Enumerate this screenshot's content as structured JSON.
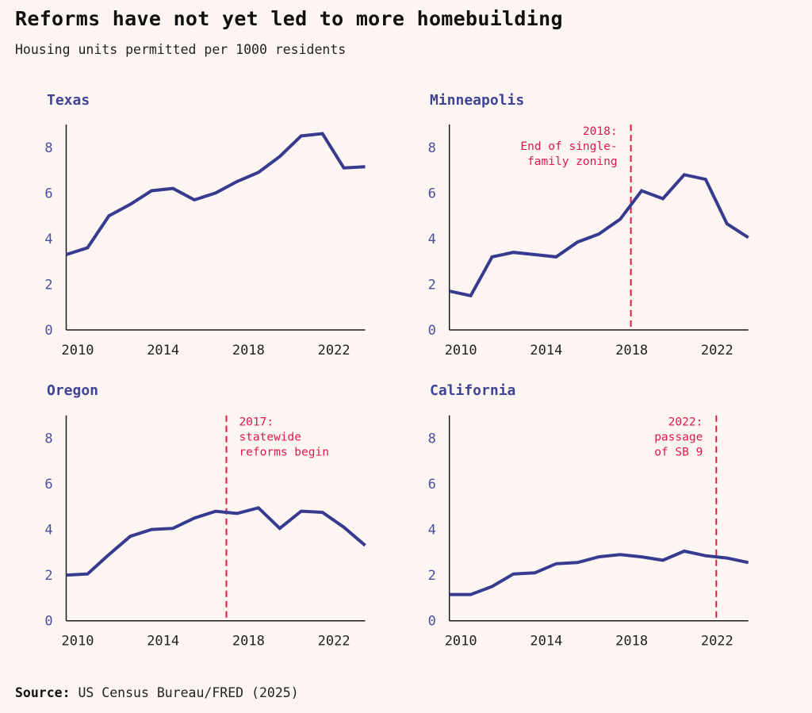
{
  "header": {
    "title": "Reforms have not yet led to more homebuilding",
    "subtitle": "Housing units permitted per 1000 residents"
  },
  "footer": {
    "source_label": "Source:",
    "source_text": " US Census Bureau/FRED (2025)"
  },
  "colors": {
    "background": "#fdf5f2",
    "series": "#363b8f",
    "panel_title": "#3f4496",
    "annotation": "#e0194a",
    "axis": "#1a1a1a"
  },
  "chart_data": [
    {
      "type": "line",
      "title": "Texas",
      "xlabel": "",
      "ylabel": "Housing units permitted per 1000 residents",
      "x": [
        2009,
        2010,
        2011,
        2012,
        2013,
        2014,
        2015,
        2016,
        2017,
        2018,
        2019,
        2020,
        2021,
        2022,
        2023
      ],
      "series": [
        {
          "name": "Texas",
          "values": [
            3.3,
            3.6,
            5.0,
            5.5,
            6.1,
            6.2,
            5.7,
            6.0,
            6.5,
            6.9,
            7.6,
            8.5,
            8.6,
            7.1,
            7.15
          ]
        }
      ],
      "xlim": [
        2009.5,
        2023.5
      ],
      "ylim": [
        0,
        9
      ],
      "xticks": [
        2010,
        2014,
        2018,
        2022
      ],
      "yticks": [
        0,
        2,
        4,
        6,
        8
      ],
      "grid": false,
      "annotation": null
    },
    {
      "type": "line",
      "title": "Minneapolis",
      "xlabel": "",
      "ylabel": "Housing units permitted per 1000 residents",
      "x": [
        2009,
        2010,
        2011,
        2012,
        2013,
        2014,
        2015,
        2016,
        2017,
        2018,
        2019,
        2020,
        2021,
        2022,
        2023
      ],
      "series": [
        {
          "name": "Minneapolis",
          "values": [
            1.7,
            1.5,
            3.2,
            3.4,
            3.3,
            3.2,
            3.85,
            4.2,
            4.85,
            6.1,
            5.75,
            6.8,
            6.6,
            4.65,
            4.05
          ]
        }
      ],
      "xlim": [
        2009.5,
        2023.5
      ],
      "ylim": [
        0,
        9
      ],
      "xticks": [
        2010,
        2014,
        2018,
        2022
      ],
      "yticks": [
        0,
        2,
        4,
        6,
        8
      ],
      "grid": false,
      "annotation": {
        "x": 2018,
        "align": "left-of-line",
        "lines": [
          "2018:",
          "End of single-",
          "family zoning"
        ]
      }
    },
    {
      "type": "line",
      "title": "Oregon",
      "xlabel": "",
      "ylabel": "Housing units permitted per 1000 residents",
      "x": [
        2009,
        2010,
        2011,
        2012,
        2013,
        2014,
        2015,
        2016,
        2017,
        2018,
        2019,
        2020,
        2021,
        2022,
        2023
      ],
      "series": [
        {
          "name": "Oregon",
          "values": [
            2.0,
            2.05,
            2.9,
            3.7,
            4.0,
            4.05,
            4.5,
            4.8,
            4.7,
            4.95,
            4.05,
            4.8,
            4.75,
            4.1,
            3.3
          ]
        }
      ],
      "xlim": [
        2009.5,
        2023.5
      ],
      "ylim": [
        0,
        9
      ],
      "xticks": [
        2010,
        2014,
        2018,
        2022
      ],
      "yticks": [
        0,
        2,
        4,
        6,
        8
      ],
      "grid": false,
      "annotation": {
        "x": 2017,
        "align": "right-of-line",
        "lines": [
          "2017:",
          "statewide",
          "reforms begin"
        ]
      }
    },
    {
      "type": "line",
      "title": "California",
      "xlabel": "",
      "ylabel": "Housing units permitted per 1000 residents",
      "x": [
        2009,
        2010,
        2011,
        2012,
        2013,
        2014,
        2015,
        2016,
        2017,
        2018,
        2019,
        2020,
        2021,
        2022,
        2023
      ],
      "series": [
        {
          "name": "California",
          "values": [
            1.15,
            1.15,
            1.5,
            2.05,
            2.1,
            2.5,
            2.55,
            2.8,
            2.9,
            2.8,
            2.65,
            3.05,
            2.85,
            2.75,
            2.55
          ]
        }
      ],
      "xlim": [
        2009.5,
        2023.5
      ],
      "ylim": [
        0,
        9
      ],
      "xticks": [
        2010,
        2014,
        2018,
        2022
      ],
      "yticks": [
        0,
        2,
        4,
        6,
        8
      ],
      "grid": false,
      "annotation": {
        "x": 2022,
        "align": "left-of-line",
        "lines": [
          "2022:",
          "passage",
          "of SB 9"
        ]
      }
    }
  ]
}
